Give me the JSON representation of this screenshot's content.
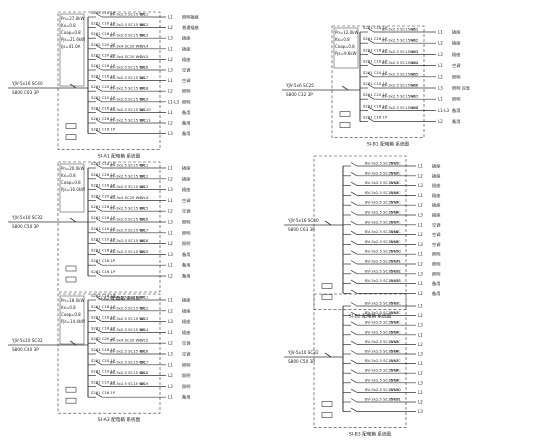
{
  "panels": [
    {
      "id": "p1",
      "title": "SI-A1 配电箱 系统图",
      "info": [
        "Pn=27.0kW",
        "Kx=0.8",
        "Cosφ=0.8",
        "Pjs=21.6kW",
        "Ijs=41.0A"
      ],
      "feeder": "YJV-5x16 SC40",
      "main_breaker": "S800 C63 3P",
      "circuits": [
        {
          "breaker": "S261 C10 1P",
          "cable": "BV-3x2.5 SC15 WC",
          "no": "WL1",
          "phase": "L1",
          "load": "照明插座"
        },
        {
          "breaker": "S261 C16 1P",
          "cable": "BV-3x2.5 SC15 WC",
          "no": "WL2",
          "phase": "L2",
          "load": "普通插座"
        },
        {
          "breaker": "S261 C16 1P",
          "cable": "BV-3x2.5 SC15 WC",
          "no": "WL3",
          "phase": "L3",
          "load": "插座"
        },
        {
          "breaker": "S262 C20 2P",
          "cable": "BV-3x4 SC20 WC",
          "no": "WL4",
          "phase": "L1",
          "load": "插座"
        },
        {
          "breaker": "S262 C20 2P",
          "cable": "BV-3x4 SC20 WC",
          "no": "WL5",
          "phase": "L2",
          "load": "插座"
        },
        {
          "breaker": "S261 C16 1P",
          "cable": "BV-3x2.5 SC15 WC",
          "no": "WL6",
          "phase": "L3",
          "load": "空调"
        },
        {
          "breaker": "S261 C16 1P",
          "cable": "BV-3x2.5 SC15 WC",
          "no": "WL7",
          "phase": "L1",
          "load": "空调"
        },
        {
          "breaker": "S261 C10 1P",
          "cable": "BV-3x2.5 SC15 WC",
          "no": "WL8",
          "phase": "L2",
          "load": "照明"
        },
        {
          "breaker": "S261 C10 1P",
          "cable": "BV-3x2.5 SC15 WC",
          "no": "WL9",
          "phase": "L1-L3",
          "load": "照明"
        },
        {
          "breaker": "S261 C16 1P",
          "cable": "BV-3x2.5 SC15 WC",
          "no": "WL10",
          "phase": "L1",
          "load": "备用"
        },
        {
          "breaker": "S261 C16 1P",
          "cable": "BV-3x2.5 SC15 WC",
          "no": "WL11",
          "phase": "L2",
          "load": "备用"
        },
        {
          "breaker": "S261 C16 1P",
          "cable": "",
          "no": "",
          "phase": "L3",
          "load": "备用"
        }
      ]
    },
    {
      "id": "p2",
      "title": "SI-A2 配电箱 系统图",
      "info": [
        "Pn=20.0kW",
        "Kx=0.8",
        "Cosφ=0.8",
        "Pjs=16.0kW"
      ],
      "feeder": "YJV-5x10 SC32",
      "main_breaker": "S800 C50 3P",
      "circuits": [
        {
          "breaker": "S261 C16 1P",
          "cable": "BV-3x2.5 SC15 WC",
          "no": "WL1",
          "phase": "L1",
          "load": "插座"
        },
        {
          "breaker": "S261 C16 1P",
          "cable": "BV-3x2.5 SC15 WC",
          "no": "WL2",
          "phase": "L2",
          "load": "插座"
        },
        {
          "breaker": "S261 C16 1P",
          "cable": "BV-3x2.5 SC15 WC",
          "no": "WL3",
          "phase": "L3",
          "load": "插座"
        },
        {
          "breaker": "S262 C20 2P",
          "cable": "BV-3x4 SC20 WC",
          "no": "WL4",
          "phase": "L1",
          "load": "空调"
        },
        {
          "breaker": "S261 C16 1P",
          "cable": "BV-3x2.5 SC15 WC",
          "no": "WL5",
          "phase": "L2",
          "load": "空调"
        },
        {
          "breaker": "S261 C16 1P",
          "cable": "BV-3x2.5 SC15 WC",
          "no": "WL6",
          "phase": "L3",
          "load": "照明"
        },
        {
          "breaker": "S261 C10 1P",
          "cable": "BV-3x2.5 SC15 WC",
          "no": "WL7",
          "phase": "L1",
          "load": "照明"
        },
        {
          "breaker": "S261 C10 1P",
          "cable": "BV-3x2.5 SC15 WC",
          "no": "WL8",
          "phase": "L2",
          "load": "照明"
        },
        {
          "breaker": "S261 C16 1P",
          "cable": "BV-3x2.5 SC15 WC",
          "no": "WL9",
          "phase": "L3",
          "load": "备用"
        },
        {
          "breaker": "S261 C16 1P",
          "cable": "",
          "no": "",
          "phase": "L1",
          "load": "备用"
        },
        {
          "breaker": "S261 C16 1P",
          "cable": "",
          "no": "",
          "phase": "L2",
          "load": "备用"
        }
      ]
    },
    {
      "id": "p3",
      "title": "SI-A3 配电箱 系统图",
      "info": [
        "Pn=18.0kW",
        "Kx=0.8",
        "Cosφ=0.8",
        "Pjs=14.4kW"
      ],
      "feeder": "YJV-5x10 SC32",
      "main_breaker": "S800 C40 3P",
      "circuits": [
        {
          "breaker": "S261 C16 1P",
          "cable": "BV-3x2.5 SC15 WC",
          "no": "WL1",
          "phase": "L1",
          "load": "插座"
        },
        {
          "breaker": "S261 C16 1P",
          "cable": "BV-3x2.5 SC15 WC",
          "no": "WL2",
          "phase": "L2",
          "load": "插座"
        },
        {
          "breaker": "S261 C16 1P",
          "cable": "BV-3x2.5 SC15 WC",
          "no": "WL3",
          "phase": "L3",
          "load": "插座"
        },
        {
          "breaker": "S261 C16 1P",
          "cable": "BV-3x2.5 SC15 WC",
          "no": "WL4",
          "phase": "L1",
          "load": "插座"
        },
        {
          "breaker": "S262 C20 2P",
          "cable": "BV-3x4 SC20 WC",
          "no": "WL5",
          "phase": "L2",
          "load": "空调"
        },
        {
          "breaker": "S261 C16 1P",
          "cable": "BV-3x2.5 SC15 WC",
          "no": "WL6",
          "phase": "L3",
          "load": "空调"
        },
        {
          "breaker": "S261 C10 1P",
          "cable": "BV-3x2.5 SC15 WC",
          "no": "WL7",
          "phase": "L1",
          "load": "照明"
        },
        {
          "breaker": "S261 C10 1P",
          "cable": "BV-3x2.5 SC15 WC",
          "no": "WL8",
          "phase": "L2",
          "load": "照明"
        },
        {
          "breaker": "S261 C10 1P",
          "cable": "BV-3x2.5 SC15 WC",
          "no": "WL9",
          "phase": "L3",
          "load": "照明"
        },
        {
          "breaker": "S261 C16 1P",
          "cable": "",
          "no": "",
          "phase": "L1",
          "load": "备用"
        }
      ]
    },
    {
      "id": "p4",
      "title": "SI-B1 配电箱 系统图",
      "info": [
        "Pn=12.0kW",
        "Kx=0.8",
        "Cosφ=0.8",
        "Pjs=9.6kW"
      ],
      "feeder": "YJV-5x6 SC25",
      "main_breaker": "S800 C32 3P",
      "circuits": [
        {
          "breaker": "S261 C16 1P",
          "cable": "BV-3x2.5 SC15 WC",
          "no": "WL1",
          "phase": "L1",
          "load": "插座"
        },
        {
          "breaker": "S261 C16 1P",
          "cable": "BV-3x2.5 SC15 WC",
          "no": "WL2",
          "phase": "L2",
          "load": "插座"
        },
        {
          "breaker": "S261 C16 1P",
          "cable": "BV-3x2.5 SC15 WC",
          "no": "WL3",
          "phase": "L3",
          "load": "插座"
        },
        {
          "breaker": "S261 C16 1P",
          "cable": "BV-3x2.5 SC15 WC",
          "no": "WL4",
          "phase": "L1",
          "load": "空调"
        },
        {
          "breaker": "S261 C10 1P",
          "cable": "BV-3x2.5 SC15 WC",
          "no": "WL5",
          "phase": "L2",
          "load": "照明"
        },
        {
          "breaker": "S261 C10 1P",
          "cable": "BV-3x2.5 SC15 WC",
          "no": "WL6",
          "phase": "L3",
          "load": "照明 应急"
        },
        {
          "breaker": "S261 C10 1P",
          "cable": "BV-3x2.5 SC15 WC",
          "no": "WL7",
          "phase": "L1",
          "load": "照明"
        },
        {
          "breaker": "S261 C16 1P",
          "cable": "BV-3x2.5 SC15 WC",
          "no": "WL8",
          "phase": "L1-L3",
          "load": "备用"
        },
        {
          "breaker": "S261 C16 1P",
          "cable": "",
          "no": "",
          "phase": "L2",
          "load": "备用"
        }
      ]
    },
    {
      "id": "p5",
      "title": "SI-B2 配电箱 系统图",
      "info": [],
      "feeder": "YJV-5x16 SC40",
      "main_breaker": "S800 C63 3P",
      "circuits": [
        {
          "breaker": "",
          "cable": "BV-3x2.5 SC15 WC",
          "no": "WL1",
          "phase": "L1",
          "load": "插座"
        },
        {
          "breaker": "",
          "cable": "BV-3x2.5 SC15 WC",
          "no": "WL2",
          "phase": "L2",
          "load": "插座"
        },
        {
          "breaker": "",
          "cable": "BV-3x2.5 SC15 WC",
          "no": "WL3",
          "phase": "L3",
          "load": "插座"
        },
        {
          "breaker": "",
          "cable": "BV-3x2.5 SC15 WC",
          "no": "WL4",
          "phase": "L1",
          "load": "插座"
        },
        {
          "breaker": "",
          "cable": "BV-3x2.5 SC15 WC",
          "no": "WL5",
          "phase": "L2",
          "load": "插座"
        },
        {
          "breaker": "",
          "cable": "BV-3x2.5 SC15 WC",
          "no": "WL6",
          "phase": "L3",
          "load": "插座"
        },
        {
          "breaker": "",
          "cable": "BV-3x2.5 SC15 WC",
          "no": "WL7",
          "phase": "L1",
          "load": "空调"
        },
        {
          "breaker": "",
          "cable": "BV-3x2.5 SC15 WC",
          "no": "WL8",
          "phase": "L2",
          "load": "空调"
        },
        {
          "breaker": "",
          "cable": "BV-3x2.5 SC15 WC",
          "no": "WL9",
          "phase": "L3",
          "load": "空调"
        },
        {
          "breaker": "",
          "cable": "BV-3x2.5 SC15 WC",
          "no": "WL10",
          "phase": "L1",
          "load": "照明"
        },
        {
          "breaker": "",
          "cable": "BV-3x2.5 SC15 WC",
          "no": "WL11",
          "phase": "L2",
          "load": "照明"
        },
        {
          "breaker": "",
          "cable": "BV-3x2.5 SC15 WC",
          "no": "WL12",
          "phase": "L3",
          "load": "照明"
        },
        {
          "breaker": "",
          "cable": "BV-3x2.5 SC15 WC",
          "no": "WL13",
          "phase": "L1",
          "load": "备用"
        },
        {
          "breaker": "",
          "cable": "",
          "no": "",
          "phase": "L2",
          "load": "备用"
        }
      ]
    },
    {
      "id": "p6",
      "title": "SI-B3 配电箱 系统图",
      "info": [],
      "feeder": "YJV-5x10 SC32",
      "main_breaker": "S800 C50 3P",
      "circuits": [
        {
          "breaker": "",
          "cable": "BV-3x2.5 SC15 WC",
          "no": "WL1",
          "phase": "L1",
          "load": ""
        },
        {
          "breaker": "",
          "cable": "BV-3x2.5 SC15 WC",
          "no": "WL2",
          "phase": "L2",
          "load": ""
        },
        {
          "breaker": "",
          "cable": "BV-3x2.5 SC15 WC",
          "no": "WL3",
          "phase": "L3",
          "load": ""
        },
        {
          "breaker": "",
          "cable": "BV-3x2.5 SC15 WC",
          "no": "WL4",
          "phase": "L1",
          "load": ""
        },
        {
          "breaker": "",
          "cable": "BV-3x2.5 SC15 WC",
          "no": "WL5",
          "phase": "L2",
          "load": ""
        },
        {
          "breaker": "",
          "cable": "BV-3x2.5 SC15 WC",
          "no": "WL6",
          "phase": "L3",
          "load": ""
        },
        {
          "breaker": "",
          "cable": "BV-3x2.5 SC15 WC",
          "no": "WL7",
          "phase": "L1",
          "load": ""
        },
        {
          "breaker": "",
          "cable": "BV-3x2.5 SC15 WC",
          "no": "WL8",
          "phase": "L2",
          "load": ""
        },
        {
          "breaker": "",
          "cable": "BV-3x2.5 SC15 WC",
          "no": "WL9",
          "phase": "L3",
          "load": ""
        },
        {
          "breaker": "",
          "cable": "BV-3x2.5 SC15 WC",
          "no": "WL10",
          "phase": "L1",
          "load": ""
        },
        {
          "breaker": "",
          "cable": "BV-3x2.5 SC15 WC",
          "no": "WL11",
          "phase": "L2",
          "load": ""
        },
        {
          "breaker": "",
          "cable": "",
          "no": "",
          "phase": "L3",
          "load": ""
        }
      ]
    }
  ],
  "colors": {
    "line": "#333333",
    "text": "#222222",
    "background": "#ffffff"
  }
}
